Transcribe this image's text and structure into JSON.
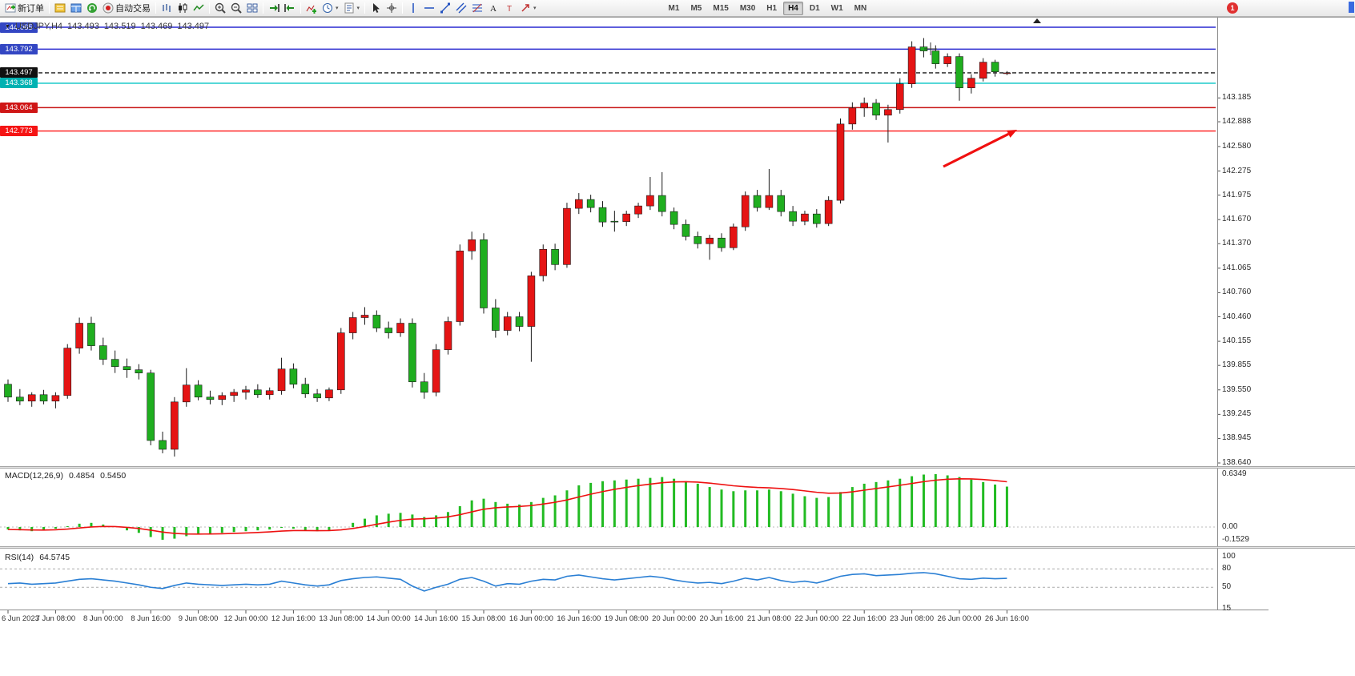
{
  "toolbar": {
    "groups": [
      {
        "items": [
          {
            "name": "new-order-button",
            "icon": "new-order-icon",
            "label": "新订单"
          }
        ]
      },
      {
        "items": [
          {
            "name": "market-panel-button",
            "icon": "panel-icon"
          },
          {
            "name": "data-window-button",
            "icon": "data-window-icon"
          },
          {
            "name": "refresh-button",
            "icon": "refresh-icon"
          },
          {
            "name": "autotrading-button",
            "icon": "autotrading-icon",
            "label": "自动交易"
          }
        ]
      },
      {
        "items": [
          {
            "name": "bar-chart-button",
            "icon": "bar-chart-icon"
          },
          {
            "name": "candlestick-button",
            "icon": "candlestick-icon"
          },
          {
            "name": "line-chart-button",
            "icon": "line-chart-icon"
          }
        ]
      },
      {
        "items": [
          {
            "name": "zoom-in-button",
            "icon": "zoom-in-icon"
          },
          {
            "name": "zoom-out-button",
            "icon": "zoom-out-icon"
          },
          {
            "name": "tile-windows-button",
            "icon": "tile-windows-icon"
          }
        ]
      },
      {
        "items": [
          {
            "name": "auto-scroll-button",
            "icon": "auto-scroll-icon"
          },
          {
            "name": "chart-shift-button",
            "icon": "chart-shift-icon"
          }
        ]
      },
      {
        "items": [
          {
            "name": "indicators-button",
            "icon": "indicators-icon"
          },
          {
            "name": "periods-button",
            "icon": "clock-icon",
            "dropdown": true
          },
          {
            "name": "templates-button",
            "icon": "template-icon",
            "dropdown": true
          }
        ]
      },
      {
        "items": [
          {
            "name": "cursor-button",
            "icon": "cursor-icon"
          },
          {
            "name": "crosshair-button",
            "icon": "crosshair-icon"
          }
        ]
      },
      {
        "items": [
          {
            "name": "vertical-line-button",
            "icon": "vertical-line-icon"
          },
          {
            "name": "horizontal-line-button",
            "icon": "horizontal-line-icon"
          },
          {
            "name": "trendline-button",
            "icon": "trendline-icon"
          },
          {
            "name": "channel-button",
            "icon": "channel-icon"
          },
          {
            "name": "fibonacci-button",
            "icon": "fibonacci-icon"
          },
          {
            "name": "text-button",
            "icon": "text-icon"
          },
          {
            "name": "label-button",
            "icon": "text-label-icon"
          },
          {
            "name": "arrows-button",
            "icon": "arrow-tools-icon",
            "dropdown": true
          }
        ]
      }
    ],
    "timeframes": [
      "M1",
      "M5",
      "M15",
      "M30",
      "H1",
      "H4",
      "D1",
      "W1",
      "MN"
    ],
    "active_timeframe": "H4",
    "notification_count": "1"
  },
  "chart": {
    "title": "USDJPY,H4",
    "open": "143.493",
    "high": "143.519",
    "low": "143.469",
    "close": "143.497"
  },
  "chart_data": {
    "type": "candlestick",
    "symbol": "USDJPY",
    "timeframe": "H4",
    "bull_color": "#e51414",
    "bear_color": "#1fae1f",
    "y_axis_ticks": [
      "143.185",
      "142.888",
      "142.580",
      "142.275",
      "141.975",
      "141.670",
      "141.370",
      "141.065",
      "140.760",
      "140.460",
      "140.155",
      "139.855",
      "139.550",
      "139.245",
      "138.945",
      "138.640"
    ],
    "price_badges": [
      {
        "value": "144.065",
        "color": "#3346c3"
      },
      {
        "value": "143.792",
        "color": "#3346c3"
      },
      {
        "value": "143.497",
        "color": "#101010"
      },
      {
        "value": "143.368",
        "color": "#00b2b2"
      },
      {
        "value": "143.064",
        "color": "#cf1616"
      },
      {
        "value": "142.773",
        "color": "#f51414"
      }
    ],
    "hlines": [
      {
        "price": 144.065,
        "color": "#2a2ad0",
        "style": "solid"
      },
      {
        "price": 143.792,
        "color": "#2a2ad0",
        "style": "solid"
      },
      {
        "price": 143.497,
        "color": "#1a1a1a",
        "style": "dash"
      },
      {
        "price": 143.368,
        "color": "#00c4c4",
        "style": "solid"
      },
      {
        "price": 143.064,
        "color": "#c81414",
        "style": "solid"
      },
      {
        "price": 142.773,
        "color": "#ff1414",
        "style": "solid"
      }
    ],
    "time_labels": [
      "6 Jun 2023",
      "7 Jun 08:00",
      "8 Jun 00:00",
      "8 Jun 16:00",
      "9 Jun 08:00",
      "12 Jun 00:00",
      "12 Jun 16:00",
      "13 Jun 08:00",
      "14 Jun 00:00",
      "14 Jun 16:00",
      "15 Jun 08:00",
      "16 Jun 00:00",
      "16 Jun 16:00",
      "19 Jun 08:00",
      "20 Jun 00:00",
      "20 Jun 16:00",
      "21 Jun 08:00",
      "22 Jun 00:00",
      "22 Jun 16:00",
      "23 Jun 08:00",
      "26 Jun 00:00",
      "26 Jun 16:00"
    ],
    "candles": [
      [
        139.62,
        139.68,
        139.4,
        139.46
      ],
      [
        139.46,
        139.56,
        139.36,
        139.41
      ],
      [
        139.41,
        139.52,
        139.34,
        139.49
      ],
      [
        139.49,
        139.55,
        139.37,
        139.41
      ],
      [
        139.41,
        139.52,
        139.32,
        139.48
      ],
      [
        139.48,
        140.12,
        139.44,
        140.07
      ],
      [
        140.07,
        140.45,
        140.0,
        140.38
      ],
      [
        140.38,
        140.46,
        140.04,
        140.1
      ],
      [
        140.1,
        140.2,
        139.86,
        139.93
      ],
      [
        139.93,
        140.04,
        139.76,
        139.84
      ],
      [
        139.84,
        139.94,
        139.7,
        139.8
      ],
      [
        139.8,
        139.87,
        139.68,
        139.76
      ],
      [
        139.76,
        139.8,
        138.86,
        138.92
      ],
      [
        138.92,
        139.03,
        138.76,
        138.81
      ],
      [
        138.81,
        139.46,
        138.72,
        139.4
      ],
      [
        139.4,
        139.82,
        139.34,
        139.61
      ],
      [
        139.61,
        139.67,
        139.42,
        139.46
      ],
      [
        139.46,
        139.54,
        139.37,
        139.43
      ],
      [
        139.43,
        139.52,
        139.36,
        139.48
      ],
      [
        139.48,
        139.56,
        139.4,
        139.52
      ],
      [
        139.52,
        139.6,
        139.43,
        139.55
      ],
      [
        139.55,
        139.62,
        139.45,
        139.49
      ],
      [
        139.49,
        139.58,
        139.43,
        139.54
      ],
      [
        139.54,
        139.95,
        139.49,
        139.81
      ],
      [
        139.81,
        139.88,
        139.57,
        139.62
      ],
      [
        139.62,
        139.7,
        139.45,
        139.5
      ],
      [
        139.5,
        139.56,
        139.4,
        139.45
      ],
      [
        139.45,
        139.58,
        139.41,
        139.55
      ],
      [
        139.55,
        140.32,
        139.5,
        140.26
      ],
      [
        140.26,
        140.52,
        140.18,
        140.45
      ],
      [
        140.45,
        140.58,
        140.36,
        140.48
      ],
      [
        140.48,
        140.54,
        140.27,
        140.32
      ],
      [
        140.32,
        140.4,
        140.19,
        140.26
      ],
      [
        140.26,
        140.44,
        140.21,
        140.38
      ],
      [
        140.38,
        140.44,
        139.58,
        139.65
      ],
      [
        139.65,
        139.76,
        139.44,
        139.52
      ],
      [
        139.52,
        140.12,
        139.47,
        140.05
      ],
      [
        140.05,
        140.46,
        139.99,
        140.4
      ],
      [
        140.4,
        141.36,
        140.35,
        141.28
      ],
      [
        141.28,
        141.52,
        141.17,
        141.42
      ],
      [
        141.42,
        141.5,
        140.5,
        140.57
      ],
      [
        140.57,
        140.68,
        140.2,
        140.29
      ],
      [
        140.29,
        140.52,
        140.23,
        140.46
      ],
      [
        140.46,
        140.52,
        140.28,
        140.34
      ],
      [
        140.34,
        141.02,
        139.9,
        140.97
      ],
      [
        140.97,
        141.36,
        140.9,
        141.3
      ],
      [
        141.3,
        141.37,
        141.04,
        141.11
      ],
      [
        141.11,
        141.88,
        141.07,
        141.81
      ],
      [
        141.81,
        142.0,
        141.74,
        141.92
      ],
      [
        141.92,
        141.98,
        141.76,
        141.82
      ],
      [
        141.82,
        141.9,
        141.58,
        141.64
      ],
      [
        141.65,
        141.78,
        141.52,
        141.645
      ],
      [
        141.645,
        141.78,
        141.59,
        141.74
      ],
      [
        141.74,
        141.88,
        141.69,
        141.84
      ],
      [
        141.84,
        142.2,
        141.79,
        141.97
      ],
      [
        141.97,
        142.26,
        141.71,
        141.77
      ],
      [
        141.77,
        141.82,
        141.55,
        141.61
      ],
      [
        141.61,
        141.67,
        141.41,
        141.46
      ],
      [
        141.46,
        141.52,
        141.31,
        141.37
      ],
      [
        141.37,
        141.48,
        141.17,
        141.44
      ],
      [
        141.44,
        141.5,
        141.27,
        141.32
      ],
      [
        141.32,
        141.62,
        141.29,
        141.58
      ],
      [
        141.58,
        142.02,
        141.53,
        141.97
      ],
      [
        141.97,
        142.04,
        141.77,
        141.82
      ],
      [
        141.82,
        142.3,
        141.79,
        141.97
      ],
      [
        141.97,
        142.04,
        141.71,
        141.77
      ],
      [
        141.77,
        141.84,
        141.59,
        141.65
      ],
      [
        141.65,
        141.78,
        141.6,
        141.74
      ],
      [
        141.74,
        141.8,
        141.57,
        141.62
      ],
      [
        141.62,
        141.96,
        141.59,
        141.91
      ],
      [
        141.91,
        142.93,
        141.87,
        142.86
      ],
      [
        142.86,
        143.13,
        142.79,
        143.06
      ],
      [
        143.06,
        143.19,
        142.95,
        143.12
      ],
      [
        143.12,
        143.17,
        142.91,
        142.97
      ],
      [
        142.97,
        143.1,
        142.63,
        143.04
      ],
      [
        143.04,
        143.43,
        142.99,
        143.36
      ],
      [
        143.36,
        143.89,
        143.31,
        143.82
      ],
      [
        143.82,
        143.93,
        143.69,
        143.77
      ],
      [
        143.77,
        143.84,
        143.55,
        143.61
      ],
      [
        143.61,
        143.74,
        143.57,
        143.7
      ],
      [
        143.7,
        143.74,
        143.15,
        143.31
      ],
      [
        143.31,
        143.48,
        143.24,
        143.43
      ],
      [
        143.43,
        143.68,
        143.39,
        143.63
      ],
      [
        143.63,
        143.66,
        143.45,
        143.51
      ],
      [
        143.493,
        143.519,
        143.469,
        143.497
      ]
    ],
    "macd": {
      "label": "MACD(12,26,9)",
      "value": "0.4854",
      "signal_value": "0.5450",
      "scale_top": "0.6349",
      "scale_zero": "0.00",
      "scale_bottom": "-0.1529",
      "hist_color": "#22bb22",
      "signal_color": "#ee1111",
      "histogram": [
        -0.03,
        -0.04,
        -0.05,
        -0.04,
        -0.02,
        0.01,
        0.04,
        0.05,
        0.03,
        0.0,
        -0.04,
        -0.07,
        -0.12,
        -0.153,
        -0.14,
        -0.11,
        -0.09,
        -0.08,
        -0.07,
        -0.06,
        -0.05,
        -0.04,
        -0.03,
        -0.01,
        -0.02,
        -0.04,
        -0.05,
        -0.04,
        0.0,
        0.05,
        0.1,
        0.14,
        0.16,
        0.17,
        0.15,
        0.12,
        0.14,
        0.18,
        0.25,
        0.32,
        0.34,
        0.3,
        0.28,
        0.27,
        0.3,
        0.35,
        0.38,
        0.44,
        0.5,
        0.53,
        0.55,
        0.56,
        0.57,
        0.58,
        0.59,
        0.6,
        0.58,
        0.55,
        0.52,
        0.48,
        0.45,
        0.43,
        0.44,
        0.44,
        0.45,
        0.43,
        0.4,
        0.37,
        0.35,
        0.36,
        0.42,
        0.48,
        0.52,
        0.54,
        0.56,
        0.58,
        0.61,
        0.63,
        0.635,
        0.62,
        0.6,
        0.57,
        0.54,
        0.51,
        0.4854
      ]
    },
    "rsi": {
      "label": "RSI(14)",
      "value": "64.5745",
      "line_color": "#2a7fd4",
      "levels": [
        "100",
        "80",
        "50",
        "15"
      ],
      "values": [
        56,
        57,
        55,
        56,
        57,
        60,
        63,
        64,
        62,
        60,
        57,
        54,
        50,
        48,
        53,
        57,
        55,
        54,
        53,
        54,
        55,
        54,
        55,
        60,
        57,
        54,
        52,
        54,
        61,
        64,
        66,
        67,
        65,
        63,
        52,
        44,
        50,
        55,
        63,
        66,
        60,
        52,
        56,
        55,
        60,
        63,
        62,
        68,
        70,
        67,
        64,
        62,
        64,
        66,
        68,
        66,
        62,
        59,
        57,
        58,
        56,
        60,
        65,
        62,
        66,
        61,
        58,
        60,
        57,
        62,
        68,
        71,
        72,
        69,
        70,
        71,
        73,
        74,
        72,
        68,
        64,
        63,
        65,
        64,
        64.57
      ]
    },
    "annotations": [
      {
        "type": "arrow",
        "color": "#f01010",
        "from": [
          1178,
          186
        ],
        "to": [
          1270,
          140
        ]
      }
    ]
  }
}
